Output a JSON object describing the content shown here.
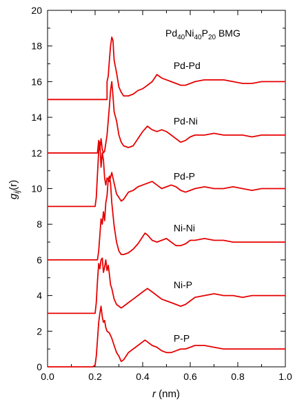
{
  "chart_data": {
    "type": "line",
    "title": "Pd40Ni40P20 BMG",
    "title_parts": {
      "e1": "Pd",
      "s1": "40",
      "e2": "Ni",
      "s2": "40",
      "e3": "P",
      "s3": "20",
      "suffix": " BMG"
    },
    "xlabel": {
      "var": "r",
      "unit": " (nm)"
    },
    "ylabel": {
      "g": "g",
      "sub": "ij",
      "arg": "(r)"
    },
    "xlim": [
      0.0,
      1.0
    ],
    "ylim": [
      0,
      20
    ],
    "xticks": [
      "0.0",
      "0.2",
      "0.4",
      "0.6",
      "0.8",
      "1.0"
    ],
    "yticks": [
      "0",
      "2",
      "4",
      "6",
      "8",
      "10",
      "12",
      "14",
      "16",
      "18",
      "20"
    ],
    "grid": false,
    "line_color": "#e60000",
    "series": [
      {
        "name": "Pd-Pd",
        "label_at": [
          0.53,
          16.9
        ],
        "x": [
          0.0,
          0.25,
          0.25,
          0.255,
          0.26,
          0.265,
          0.27,
          0.275,
          0.28,
          0.29,
          0.3,
          0.31,
          0.32,
          0.34,
          0.36,
          0.38,
          0.4,
          0.42,
          0.44,
          0.46,
          0.47,
          0.48,
          0.5,
          0.52,
          0.54,
          0.56,
          0.58,
          0.6,
          0.62,
          0.66,
          0.7,
          0.74,
          0.78,
          0.82,
          0.86,
          0.9,
          0.94,
          0.98,
          1.0
        ],
        "y": [
          15.0,
          15.0,
          16.0,
          16.3,
          17.2,
          18.0,
          18.5,
          18.3,
          17.2,
          16.5,
          15.7,
          15.4,
          15.2,
          15.2,
          15.3,
          15.5,
          15.6,
          15.8,
          16.0,
          16.4,
          16.3,
          16.2,
          16.1,
          16.0,
          15.9,
          15.8,
          15.8,
          15.9,
          16.0,
          16.1,
          16.1,
          16.1,
          16.0,
          15.9,
          15.9,
          16.0,
          16.0,
          16.0,
          16.0
        ]
      },
      {
        "name": "Pd-Ni",
        "label_at": [
          0.53,
          13.8
        ],
        "x": [
          0.0,
          0.21,
          0.215,
          0.22,
          0.225,
          0.23,
          0.235,
          0.24,
          0.25,
          0.255,
          0.26,
          0.265,
          0.27,
          0.275,
          0.28,
          0.29,
          0.3,
          0.31,
          0.32,
          0.34,
          0.36,
          0.38,
          0.4,
          0.42,
          0.43,
          0.44,
          0.46,
          0.48,
          0.5,
          0.52,
          0.54,
          0.56,
          0.58,
          0.6,
          0.62,
          0.66,
          0.7,
          0.74,
          0.78,
          0.82,
          0.86,
          0.9,
          0.94,
          0.98,
          1.0
        ],
        "y": [
          12.0,
          12.0,
          12.7,
          12.2,
          12.8,
          12.2,
          12.0,
          12.1,
          13.0,
          13.8,
          14.6,
          15.5,
          16.0,
          15.2,
          14.3,
          13.8,
          13.0,
          12.6,
          12.4,
          12.3,
          12.4,
          12.8,
          13.2,
          13.5,
          13.4,
          13.3,
          13.2,
          13.3,
          13.2,
          13.0,
          12.8,
          12.6,
          12.7,
          12.9,
          13.0,
          13.0,
          13.1,
          13.0,
          13.0,
          13.0,
          12.9,
          13.0,
          13.0,
          13.0,
          13.0
        ]
      },
      {
        "name": "Pd-P",
        "label_at": [
          0.53,
          10.7
        ],
        "x": [
          0.0,
          0.2,
          0.205,
          0.21,
          0.215,
          0.22,
          0.225,
          0.23,
          0.235,
          0.24,
          0.245,
          0.25,
          0.26,
          0.27,
          0.28,
          0.29,
          0.3,
          0.31,
          0.32,
          0.33,
          0.34,
          0.36,
          0.38,
          0.4,
          0.42,
          0.44,
          0.46,
          0.48,
          0.5,
          0.52,
          0.54,
          0.56,
          0.58,
          0.6,
          0.62,
          0.66,
          0.7,
          0.74,
          0.78,
          0.82,
          0.86,
          0.9,
          0.94,
          0.98,
          1.0
        ],
        "y": [
          9.0,
          9.0,
          9.5,
          10.8,
          12.1,
          12.6,
          11.2,
          12.0,
          11.6,
          10.6,
          10.2,
          10.6,
          10.4,
          10.9,
          10.3,
          9.7,
          9.5,
          9.3,
          9.4,
          9.6,
          9.8,
          9.9,
          10.1,
          10.2,
          10.3,
          10.4,
          10.2,
          10.0,
          10.1,
          10.2,
          10.1,
          9.9,
          9.8,
          9.9,
          10.0,
          10.1,
          10.0,
          10.0,
          10.1,
          10.0,
          9.9,
          10.0,
          10.0,
          10.0,
          10.0
        ]
      },
      {
        "name": "Ni-Ni",
        "label_at": [
          0.53,
          7.8
        ],
        "x": [
          0.0,
          0.21,
          0.215,
          0.22,
          0.225,
          0.23,
          0.235,
          0.24,
          0.245,
          0.25,
          0.255,
          0.26,
          0.265,
          0.27,
          0.28,
          0.29,
          0.3,
          0.31,
          0.32,
          0.34,
          0.36,
          0.38,
          0.4,
          0.41,
          0.42,
          0.44,
          0.46,
          0.48,
          0.5,
          0.52,
          0.54,
          0.56,
          0.58,
          0.6,
          0.62,
          0.66,
          0.7,
          0.74,
          0.78,
          0.82,
          0.86,
          0.9,
          0.94,
          0.98,
          1.0
        ],
        "y": [
          6.0,
          6.0,
          6.5,
          7.4,
          8.3,
          8.0,
          8.7,
          8.2,
          9.2,
          9.6,
          10.5,
          10.7,
          10.3,
          9.2,
          7.9,
          7.0,
          6.5,
          6.3,
          6.3,
          6.4,
          6.6,
          6.9,
          7.3,
          7.5,
          7.4,
          7.1,
          7.0,
          7.1,
          7.2,
          7.0,
          6.8,
          6.8,
          6.9,
          7.1,
          7.1,
          7.2,
          7.1,
          7.1,
          7.0,
          7.0,
          7.0,
          7.0,
          7.0,
          7.0,
          7.0
        ]
      },
      {
        "name": "Ni-P",
        "label_at": [
          0.53,
          4.6
        ],
        "x": [
          0.0,
          0.2,
          0.205,
          0.21,
          0.215,
          0.22,
          0.225,
          0.23,
          0.235,
          0.24,
          0.245,
          0.25,
          0.255,
          0.26,
          0.265,
          0.27,
          0.28,
          0.29,
          0.3,
          0.31,
          0.32,
          0.34,
          0.36,
          0.38,
          0.4,
          0.42,
          0.44,
          0.46,
          0.48,
          0.5,
          0.52,
          0.54,
          0.56,
          0.58,
          0.6,
          0.62,
          0.66,
          0.7,
          0.74,
          0.78,
          0.82,
          0.86,
          0.9,
          0.94,
          0.98,
          1.0
        ],
        "y": [
          3.0,
          3.0,
          3.6,
          4.8,
          5.8,
          5.5,
          6.0,
          6.1,
          5.3,
          5.6,
          6.0,
          5.4,
          5.7,
          5.2,
          4.6,
          4.4,
          3.8,
          3.5,
          3.4,
          3.3,
          3.4,
          3.6,
          3.8,
          4.0,
          4.2,
          4.4,
          4.2,
          4.0,
          3.8,
          3.7,
          3.6,
          3.5,
          3.4,
          3.5,
          3.7,
          3.9,
          4.0,
          4.1,
          4.0,
          4.0,
          3.9,
          4.0,
          4.0,
          4.0,
          4.0,
          4.0
        ]
      },
      {
        "name": "P-P",
        "label_at": [
          0.53,
          1.6
        ],
        "x": [
          0.0,
          0.19,
          0.2,
          0.205,
          0.21,
          0.215,
          0.22,
          0.225,
          0.23,
          0.235,
          0.24,
          0.245,
          0.25,
          0.26,
          0.27,
          0.28,
          0.29,
          0.3,
          0.31,
          0.32,
          0.33,
          0.34,
          0.36,
          0.38,
          0.4,
          0.41,
          0.42,
          0.44,
          0.46,
          0.48,
          0.5,
          0.52,
          0.54,
          0.56,
          0.58,
          0.6,
          0.62,
          0.66,
          0.7,
          0.74,
          0.78,
          0.82,
          0.86,
          0.9,
          0.94,
          0.98,
          1.0
        ],
        "y": [
          0.0,
          0.0,
          0.1,
          0.6,
          1.5,
          2.5,
          3.0,
          3.4,
          2.8,
          2.5,
          2.6,
          2.2,
          2.0,
          1.9,
          1.6,
          1.2,
          0.8,
          0.6,
          0.3,
          0.4,
          0.6,
          0.8,
          1.0,
          1.2,
          1.4,
          1.5,
          1.4,
          1.2,
          1.1,
          0.9,
          0.8,
          0.8,
          0.9,
          1.0,
          1.0,
          1.1,
          1.2,
          1.2,
          1.1,
          1.0,
          1.0,
          1.0,
          1.0,
          1.0,
          1.0,
          1.0,
          1.0
        ]
      }
    ]
  }
}
